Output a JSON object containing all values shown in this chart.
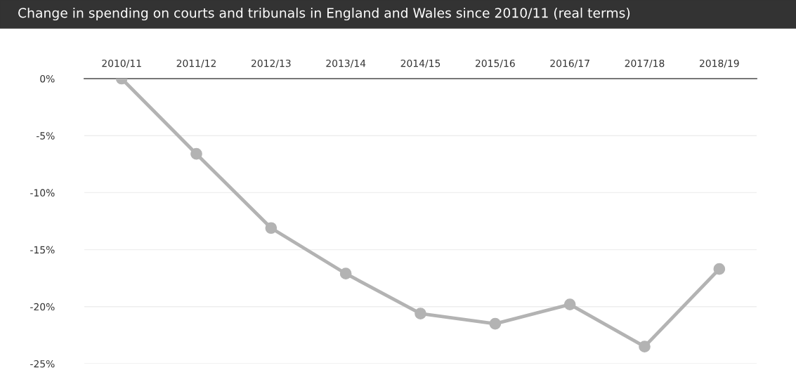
{
  "chart_data": {
    "type": "line",
    "title": "Change in spending on courts and tribunals in England and Wales since 2010/11 (real terms)",
    "categories": [
      "2010/11",
      "2011/12",
      "2012/13",
      "2013/14",
      "2014/15",
      "2015/16",
      "2016/17",
      "2017/18",
      "2018/19"
    ],
    "series": [
      {
        "color": "#b3b3b3",
        "values": [
          0,
          -6.6,
          -13.1,
          -17.1,
          -20.6,
          -21.5,
          -19.8,
          -23.5,
          -16.7
        ]
      }
    ],
    "ylim": [
      -25,
      0
    ],
    "yticks": [
      {
        "value": 0,
        "label": "0%"
      },
      {
        "value": -5,
        "label": "-5%"
      },
      {
        "value": -10,
        "label": "-10%"
      },
      {
        "value": -15,
        "label": "-15%"
      },
      {
        "value": -20,
        "label": "-20%"
      },
      {
        "value": -25,
        "label": "-25%"
      }
    ],
    "grid": "y",
    "marker": "circle",
    "line_style": "solid",
    "legend": false
  }
}
